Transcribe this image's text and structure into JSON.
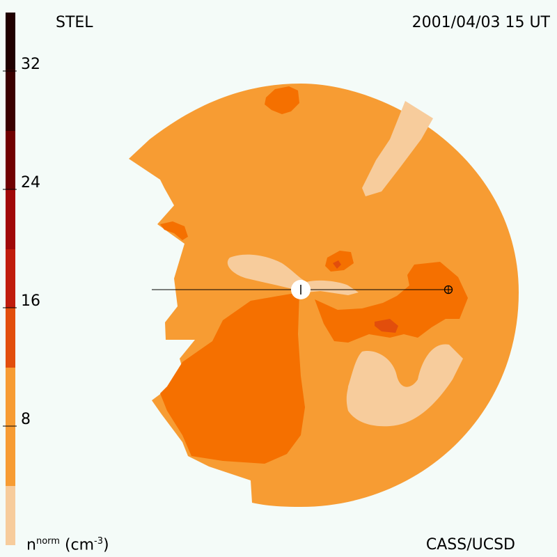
{
  "header": {
    "left_title": "STEL",
    "right_title": "2001/04/03 15 UT"
  },
  "footer": {
    "credit": "CASS/UCSD",
    "unit_base": "n",
    "unit_sup": "norm",
    "unit_rest": "(cm",
    "unit_exp": "-3",
    "unit_close": ")"
  },
  "colorbar": {
    "levels": [
      {
        "color": "#f7cc9c"
      },
      {
        "color": "#f79c33"
      },
      {
        "color": "#f57000"
      },
      {
        "color": "#e24e0c"
      },
      {
        "color": "#c01c0c"
      },
      {
        "color": "#9a0808"
      },
      {
        "color": "#700000"
      },
      {
        "color": "#3a0000"
      },
      {
        "color": "#200000"
      }
    ],
    "tick_labels": [
      "8",
      "16",
      "24",
      "32"
    ]
  },
  "colors": {
    "background": "#f4fbf8",
    "light": "#f7cc9c",
    "base": "#f79c33",
    "mid": "#f57000",
    "high": "#e24e0c",
    "peak": "#c01c0c"
  }
}
